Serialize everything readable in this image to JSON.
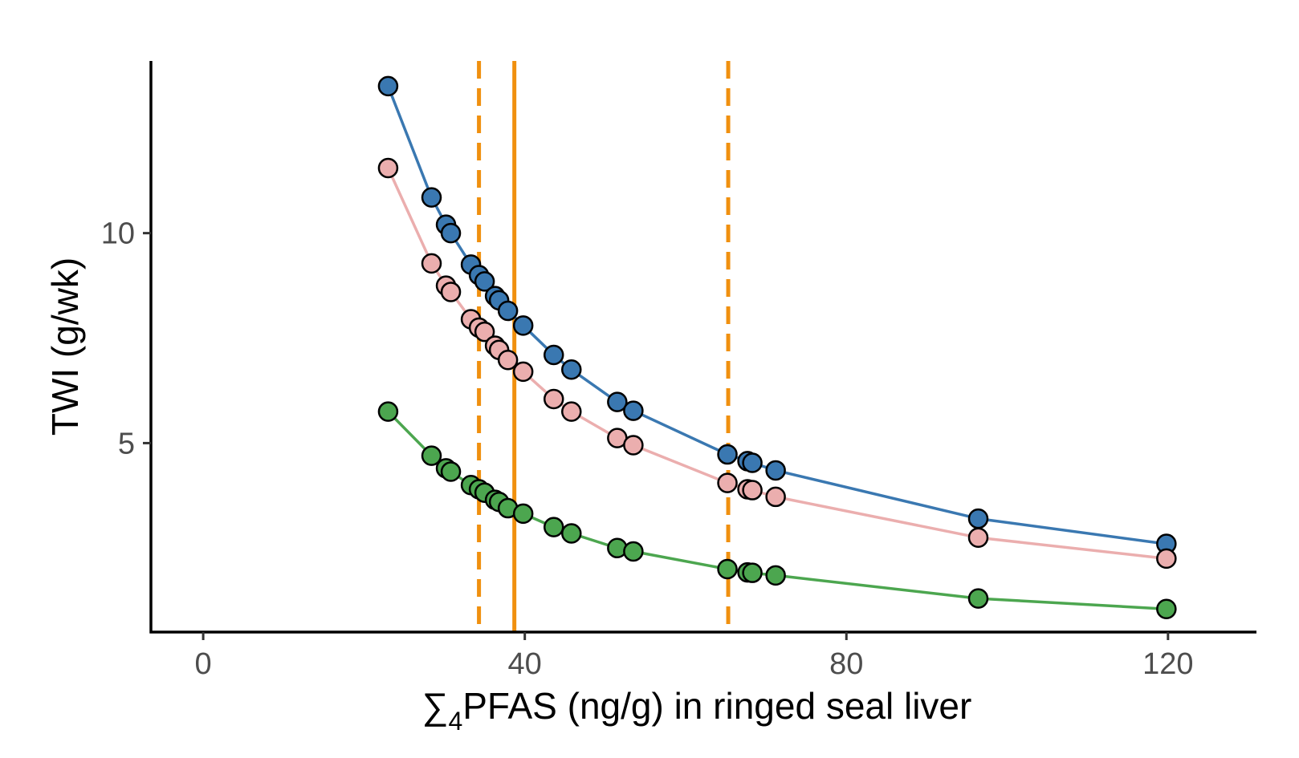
{
  "chart_data": {
    "type": "scatter",
    "title": "",
    "xlabel_prefix": "∑",
    "xlabel_sub": "4",
    "xlabel_rest": "PFAS (ng/g) in ringed seal liver",
    "ylabel": "TWI (g/wk)",
    "xlim": [
      -6.5,
      131
    ],
    "ylim": [
      0.5,
      14.1
    ],
    "x_ticks": [
      0,
      40,
      80,
      120
    ],
    "x_tick_labels": [
      "0",
      "40",
      "80",
      "120"
    ],
    "y_ticks": [
      5,
      10
    ],
    "y_tick_labels": [
      "5",
      "10"
    ],
    "grid": false,
    "legend": "none",
    "x": [
      23.0,
      28.4,
      30.2,
      30.8,
      33.3,
      34.3,
      35.0,
      36.3,
      36.8,
      37.9,
      39.8,
      43.6,
      45.8,
      51.5,
      53.5,
      65.2,
      67.7,
      68.3,
      71.2,
      96.4,
      119.8
    ],
    "series": [
      {
        "color": "#3a78b1",
        "values": [
          13.5,
          10.85,
          10.2,
          10.0,
          9.25,
          9.0,
          8.85,
          8.5,
          8.4,
          8.15,
          7.8,
          7.1,
          6.75,
          5.98,
          5.77,
          4.73,
          4.57,
          4.53,
          4.35,
          3.2,
          2.6
        ]
      },
      {
        "color": "#ebaeae",
        "values": [
          11.55,
          9.28,
          8.75,
          8.6,
          7.95,
          7.75,
          7.65,
          7.32,
          7.22,
          6.98,
          6.7,
          6.05,
          5.75,
          5.12,
          4.95,
          4.05,
          3.9,
          3.88,
          3.72,
          2.75,
          2.25
        ]
      },
      {
        "color": "#4ca64f",
        "values": [
          5.75,
          4.7,
          4.4,
          4.32,
          4.0,
          3.9,
          3.82,
          3.65,
          3.6,
          3.45,
          3.32,
          3.0,
          2.85,
          2.5,
          2.42,
          2.0,
          1.92,
          1.91,
          1.85,
          1.3,
          1.05
        ]
      }
    ],
    "reference_lines": {
      "color": "#f0900f",
      "solid_x": 38.7,
      "dashed_x": [
        34.3,
        65.3
      ]
    }
  }
}
